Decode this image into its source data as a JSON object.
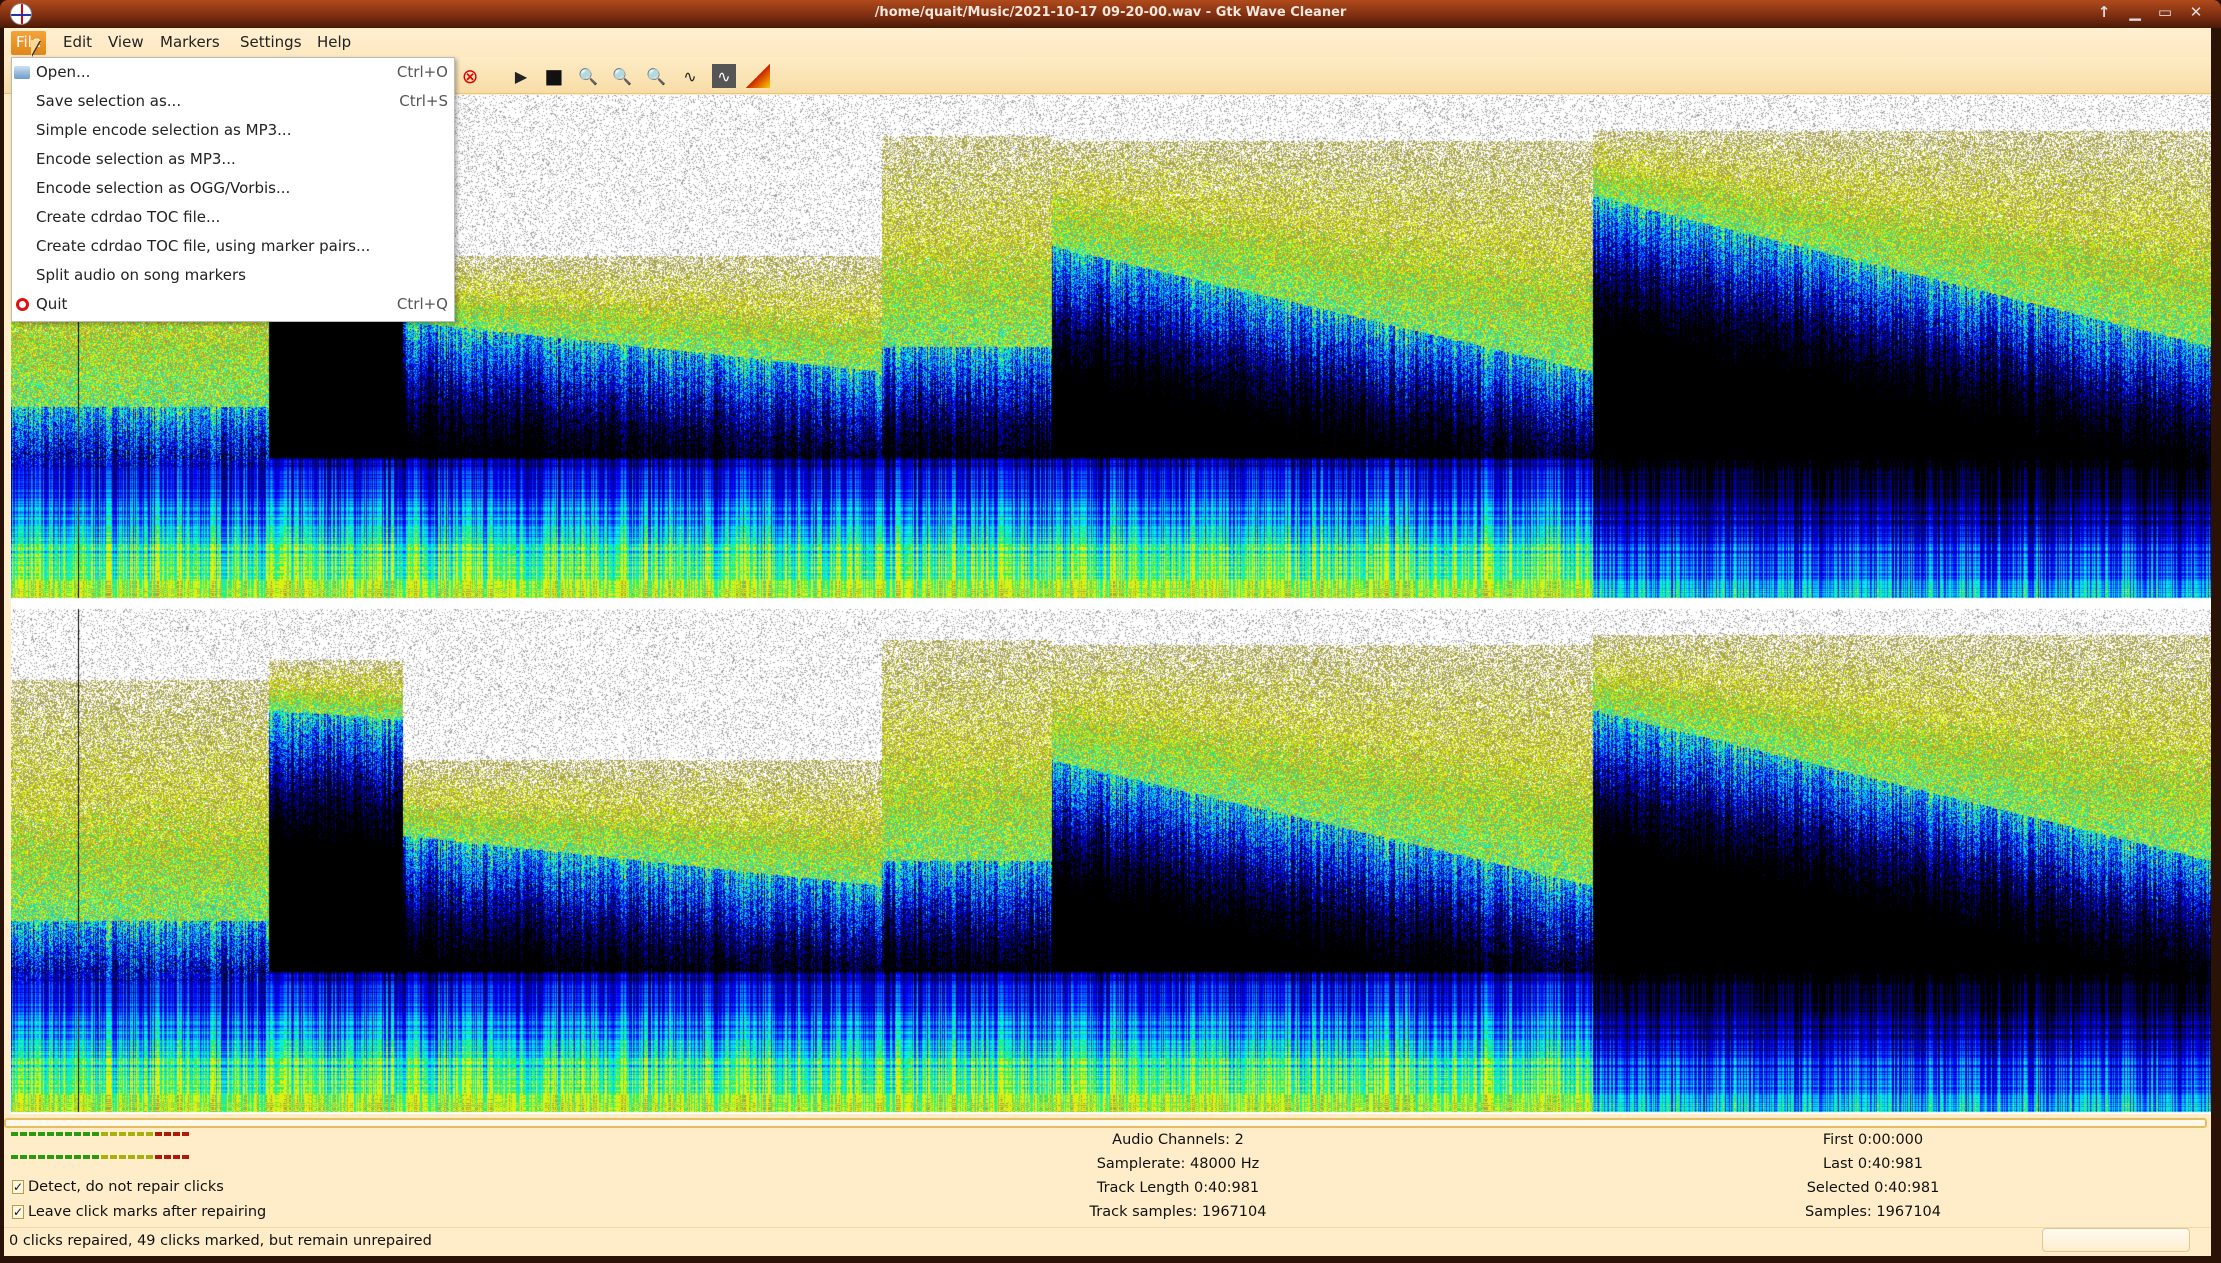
{
  "window": {
    "title": "/home/quait/Music/2021-10-17 09-20-00.wav - Gtk Wave Cleaner"
  },
  "menubar": [
    "File",
    "Edit",
    "View",
    "Markers",
    "Settings",
    "Help"
  ],
  "file_menu": [
    {
      "label": "Open...",
      "shortcut": "Ctrl+O",
      "icon": "folder-icon"
    },
    {
      "label": "Save selection as...",
      "shortcut": "Ctrl+S"
    },
    {
      "label": "Simple encode selection as MP3...",
      "shortcut": ""
    },
    {
      "label": "Encode selection as MP3...",
      "shortcut": ""
    },
    {
      "label": "Encode selection as OGG/Vorbis...",
      "shortcut": ""
    },
    {
      "label": "Create cdrdao TOC file...",
      "shortcut": ""
    },
    {
      "label": "Create cdrdao TOC file, using marker pairs...",
      "shortcut": ""
    },
    {
      "label": "Split audio on song markers",
      "shortcut": ""
    },
    {
      "label": "Quit",
      "shortcut": "Ctrl+Q",
      "icon": "quit-icon"
    }
  ],
  "toolbar": [
    "cancel-icon",
    "play-icon",
    "stop-icon",
    "zoom-selection-icon",
    "zoom-in-icon",
    "zoom-out-icon",
    "waveform-view-icon",
    "waveform-dark-view-icon",
    "spectrogram-view-icon"
  ],
  "info": {
    "channels": "Audio Channels: 2",
    "samplerate": "Samplerate: 48000 Hz",
    "track_length": "Track Length 0:40:981",
    "track_samples": "Track samples: 1967104",
    "first": "First 0:00:000",
    "last": "Last 0:40:981",
    "selected": "Selected 0:40:981",
    "samples": "Samples: 1967104"
  },
  "options": [
    {
      "label": "Detect, do not repair clicks",
      "checked": true
    },
    {
      "label": "Leave click marks after repairing",
      "checked": true
    }
  ],
  "status": "0 clicks repaired, 49 clicks marked, but remain unrepaired",
  "colors": {
    "accent": "#e8901e",
    "titlebar": "#7a2c10",
    "background": "#feedc8"
  }
}
